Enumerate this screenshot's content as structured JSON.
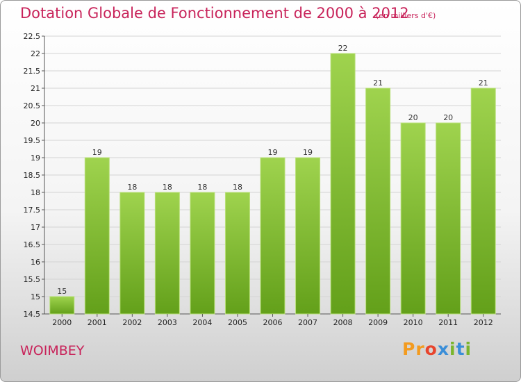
{
  "header": {
    "title": "Dotation Globale de Fonctionnement de 2000 à 2012",
    "unit": "(en milliers d'€)"
  },
  "footer": {
    "commune": "WOIMBEY",
    "logo_letters": [
      "P",
      "r",
      "o",
      "x",
      "i",
      "t",
      "i"
    ]
  },
  "colors": {
    "accent": "#c8235a",
    "bar_light": "#9fd34e",
    "bar_dark": "#63a01a",
    "logo": [
      "#f39b1f",
      "#f39b1f",
      "#e8452d",
      "#3a8ed8",
      "#7ab52d",
      "#3a8ed8",
      "#7ab52d"
    ]
  },
  "chart_data": {
    "type": "bar",
    "categories": [
      "2000",
      "2001",
      "2002",
      "2003",
      "2004",
      "2005",
      "2006",
      "2007",
      "2008",
      "2009",
      "2010",
      "2011",
      "2012"
    ],
    "values": [
      15,
      19,
      18,
      18,
      18,
      18,
      19,
      19,
      22,
      21,
      20,
      20,
      21
    ],
    "value_labels": [
      "15",
      "19",
      "18",
      "18",
      "18",
      "18",
      "19",
      "19",
      "22",
      "21",
      "20",
      "20",
      "21"
    ],
    "ylim": [
      14.5,
      22.5
    ],
    "yticks": [
      14.5,
      15,
      15.5,
      16,
      16.5,
      17,
      17.5,
      18,
      18.5,
      19,
      19.5,
      20,
      20.5,
      21,
      21.5,
      22,
      22.5
    ],
    "ytick_labels": [
      "14.5",
      "15",
      "15.5",
      "16",
      "16.5",
      "17",
      "17.5",
      "18",
      "18.5",
      "19",
      "19.5",
      "20",
      "20.5",
      "21",
      "21.5",
      "22",
      "22.5"
    ],
    "grid": true,
    "legend": "none"
  }
}
